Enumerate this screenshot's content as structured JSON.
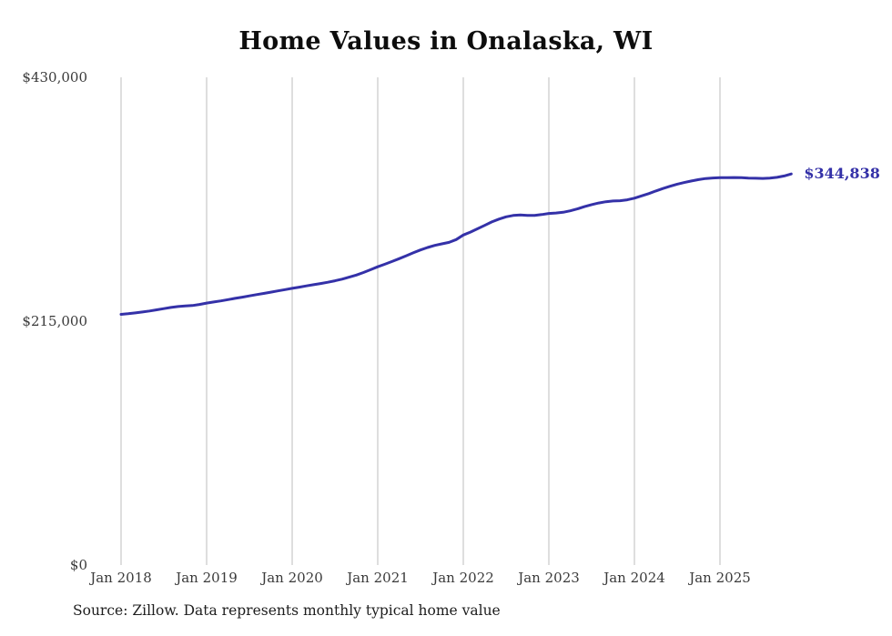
{
  "colors": {
    "line": "#3431a8",
    "grid": "#cccccc",
    "axis_text": "#3a3a3a"
  },
  "source_note": "Source: Zillow. Data represents monthly typical home value",
  "chart_data": {
    "type": "line",
    "title": "Home Values in Onalaska, WI",
    "xlabel": "",
    "ylabel": "",
    "ylim": [
      0,
      430000
    ],
    "grid": "vertical-only",
    "x_start": "Jan 2018",
    "frequency": "monthly",
    "x_tick_labels": [
      "Jan 2018",
      "Jan 2019",
      "Jan 2020",
      "Jan 2021",
      "Jan 2022",
      "Jan 2023",
      "Jan 2024",
      "Jan 2025"
    ],
    "y_ticks": [
      {
        "value": 0,
        "label": "$0"
      },
      {
        "value": 215000,
        "label": "$215,000"
      },
      {
        "value": 430000,
        "label": "$430,000"
      }
    ],
    "end_label": "$344,838",
    "series": [
      {
        "name": "Typical home value",
        "values": [
          221000,
          221600,
          222300,
          223100,
          224000,
          225000,
          226100,
          227100,
          227900,
          228400,
          228800,
          229800,
          231000,
          231900,
          232900,
          234000,
          235100,
          236200,
          237300,
          238400,
          239500,
          240600,
          241700,
          242800,
          244000,
          245000,
          246100,
          247200,
          248200,
          249300,
          250600,
          252100,
          253800,
          255700,
          257900,
          260400,
          263000,
          265200,
          267600,
          270100,
          272700,
          275300,
          277800,
          280000,
          281800,
          283200,
          284500,
          287000,
          291000,
          293500,
          296500,
          299500,
          302500,
          305000,
          307000,
          308200,
          308600,
          308300,
          308200,
          309000,
          310000,
          310400,
          311000,
          312300,
          314000,
          316000,
          317800,
          319200,
          320300,
          321000,
          321200,
          322000,
          323500,
          325500,
          327500,
          329800,
          332000,
          334000,
          335800,
          337300,
          338600,
          339800,
          340800,
          341300,
          341500,
          341600,
          341700,
          341500,
          341200,
          341000,
          340900,
          341100,
          341800,
          343000,
          344838
        ]
      }
    ]
  }
}
